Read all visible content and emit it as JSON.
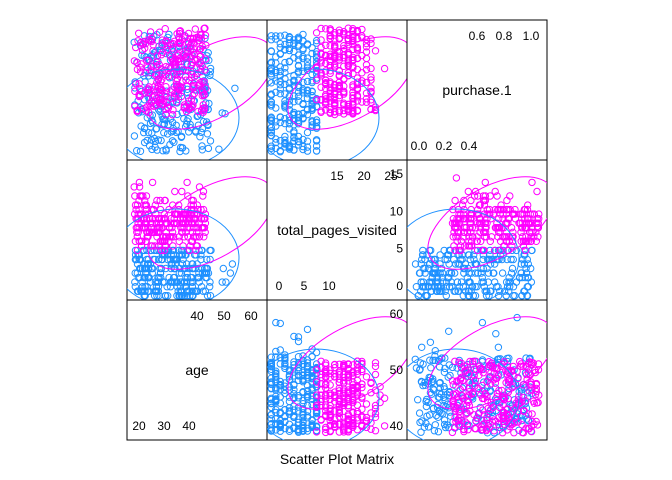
{
  "chart_data": {
    "type": "scatter",
    "title": "Scatter Plot Matrix",
    "variables": [
      {
        "name": "purchase.1",
        "range": [
          -0.05,
          1.05
        ],
        "diag_ticks_low": [
          "0.0",
          "0.2",
          "0.4"
        ],
        "diag_ticks_high": [
          "0.6",
          "0.8",
          "1.0"
        ],
        "axis_ticks": [
          "0.0",
          "0.2",
          "0.4",
          "0.6",
          "0.8",
          "1.0"
        ]
      },
      {
        "name": "total_pages_visited",
        "range": [
          -0.5,
          29.5
        ],
        "diag_ticks_low": [
          "0",
          "5",
          "10"
        ],
        "diag_ticks_high": [
          "15",
          "20",
          "25"
        ],
        "axis_ticks": [
          "0",
          "5",
          "10"
        ]
      },
      {
        "name": "age",
        "range": [
          15,
          68
        ],
        "diag_ticks_low": [
          "20",
          "30",
          "40"
        ],
        "diag_ticks_high": [
          "40",
          "50",
          "60"
        ],
        "axis_ticks": [
          "20",
          "30",
          "40"
        ]
      }
    ],
    "groups": [
      {
        "name": "0",
        "color": "#1E90FF"
      },
      {
        "name": "1",
        "color": "#FF00FF"
      }
    ],
    "sample_points": {
      "purchase_0": [
        [
          0.05,
          2,
          30
        ],
        [
          0.35,
          3,
          42
        ],
        [
          0.6,
          4,
          28
        ],
        [
          0.85,
          5,
          35
        ],
        [
          0.92,
          6,
          55
        ],
        [
          0.15,
          1,
          22
        ],
        [
          0.45,
          7,
          48
        ],
        [
          0.7,
          2,
          60
        ],
        [
          0.25,
          8,
          25
        ],
        [
          0.55,
          5,
          38
        ],
        [
          0.8,
          3,
          45
        ],
        [
          0.1,
          9,
          33
        ],
        [
          0.4,
          6,
          52
        ],
        [
          0.65,
          4,
          27
        ],
        [
          0.95,
          7,
          40
        ],
        [
          0.3,
          10,
          29
        ],
        [
          0.5,
          3,
          44
        ],
        [
          0.75,
          8,
          36
        ],
        [
          0.2,
          5,
          58
        ],
        [
          0.88,
          2,
          31
        ]
      ],
      "purchase_1": [
        [
          0.1,
          13,
          28
        ],
        [
          0.4,
          14,
          24
        ],
        [
          0.7,
          15,
          30
        ],
        [
          0.9,
          17,
          22
        ],
        [
          0.95,
          20,
          26
        ],
        [
          0.2,
          12,
          34
        ],
        [
          0.55,
          16,
          20
        ],
        [
          0.8,
          13,
          27
        ],
        [
          0.3,
          19,
          23
        ],
        [
          0.65,
          14,
          33
        ],
        [
          0.85,
          22,
          25
        ],
        [
          0.15,
          15,
          21
        ],
        [
          0.45,
          13,
          35
        ],
        [
          0.75,
          18,
          24
        ],
        [
          0.98,
          27,
          29
        ]
      ]
    },
    "caption": "Scatter Plot Matrix"
  }
}
